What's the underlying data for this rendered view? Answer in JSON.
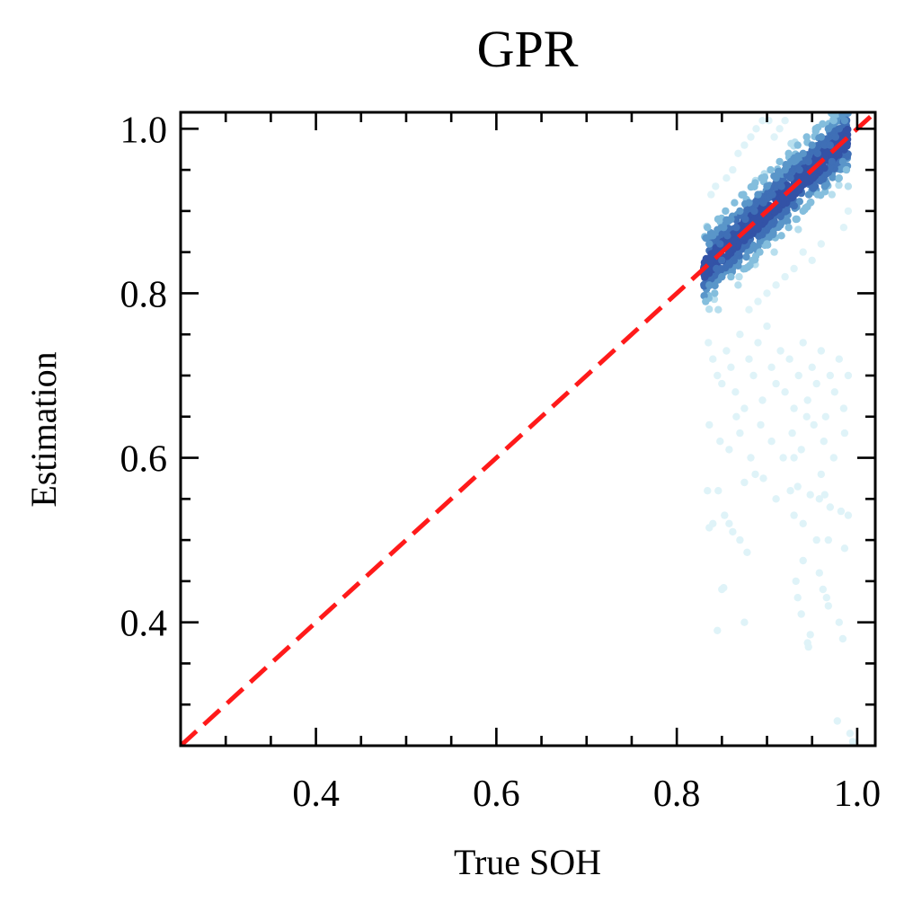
{
  "chart_data": {
    "type": "scatter",
    "title": "GPR",
    "xlabel": "True SOH",
    "ylabel": "Estimation",
    "xlim": [
      0.25,
      1.02
    ],
    "ylim": [
      0.25,
      1.02
    ],
    "xticks": [
      0.4,
      0.6,
      0.8,
      1.0
    ],
    "yticks": [
      0.4,
      0.6,
      0.8,
      1.0
    ],
    "xtick_labels": [
      "0.4",
      "0.6",
      "0.8",
      "1.0"
    ],
    "ytick_labels": [
      "0.4",
      "0.6",
      "0.8",
      "1.0"
    ],
    "grid": false,
    "reference_line": {
      "x": [
        0.25,
        1.02
      ],
      "y": [
        0.25,
        1.02
      ],
      "color": "#ff1a1a",
      "style": "dashed"
    },
    "color_scale": [
      "#dff3f8",
      "#b8dfee",
      "#84bedd",
      "#5a96c9",
      "#3f6fb6",
      "#3352a6"
    ],
    "density_cluster": {
      "x_range": [
        0.83,
        0.99
      ],
      "slope": 1.0,
      "offset": 0.0
    },
    "points": [
      [
        0.834,
        0.88
      ],
      [
        0.836,
        0.86
      ],
      [
        0.838,
        0.84
      ],
      [
        0.84,
        0.87
      ],
      [
        0.842,
        0.85
      ],
      [
        0.844,
        0.83
      ],
      [
        0.846,
        0.89
      ],
      [
        0.848,
        0.86
      ],
      [
        0.85,
        0.84
      ],
      [
        0.852,
        0.88
      ],
      [
        0.854,
        0.9
      ],
      [
        0.856,
        0.87
      ],
      [
        0.858,
        0.85
      ],
      [
        0.86,
        0.89
      ],
      [
        0.862,
        0.86
      ],
      [
        0.864,
        0.91
      ],
      [
        0.866,
        0.88
      ],
      [
        0.868,
        0.86
      ],
      [
        0.87,
        0.9
      ],
      [
        0.872,
        0.87
      ],
      [
        0.874,
        0.92
      ],
      [
        0.876,
        0.89
      ],
      [
        0.878,
        0.87
      ],
      [
        0.88,
        0.91
      ],
      [
        0.882,
        0.88
      ],
      [
        0.884,
        0.93
      ],
      [
        0.886,
        0.9
      ],
      [
        0.888,
        0.88
      ],
      [
        0.89,
        0.92
      ],
      [
        0.892,
        0.89
      ],
      [
        0.894,
        0.94
      ],
      [
        0.896,
        0.91
      ],
      [
        0.898,
        0.89
      ],
      [
        0.9,
        0.93
      ],
      [
        0.902,
        0.9
      ],
      [
        0.904,
        0.95
      ],
      [
        0.906,
        0.92
      ],
      [
        0.908,
        0.9
      ],
      [
        0.91,
        0.94
      ],
      [
        0.912,
        0.91
      ],
      [
        0.914,
        0.96
      ],
      [
        0.916,
        0.93
      ],
      [
        0.918,
        0.91
      ],
      [
        0.92,
        0.95
      ],
      [
        0.922,
        0.92
      ],
      [
        0.924,
        0.97
      ],
      [
        0.926,
        0.94
      ],
      [
        0.928,
        0.92
      ],
      [
        0.93,
        0.96
      ],
      [
        0.932,
        0.93
      ],
      [
        0.934,
        0.98
      ],
      [
        0.936,
        0.95
      ],
      [
        0.938,
        0.93
      ],
      [
        0.94,
        0.97
      ],
      [
        0.942,
        0.94
      ],
      [
        0.944,
        0.99
      ],
      [
        0.946,
        0.96
      ],
      [
        0.948,
        0.94
      ],
      [
        0.95,
        0.98
      ],
      [
        0.952,
        0.95
      ],
      [
        0.954,
        1.0
      ],
      [
        0.956,
        0.97
      ],
      [
        0.958,
        0.95
      ],
      [
        0.96,
        0.99
      ],
      [
        0.962,
        0.96
      ],
      [
        0.964,
        0.98
      ],
      [
        0.966,
        0.97
      ],
      [
        0.968,
        1.0
      ],
      [
        0.97,
        0.98
      ],
      [
        0.972,
        0.96
      ],
      [
        0.974,
        1.01
      ],
      [
        0.976,
        0.99
      ],
      [
        0.978,
        0.97
      ],
      [
        0.98,
        1.0
      ],
      [
        0.982,
        0.98
      ],
      [
        0.984,
        0.96
      ],
      [
        0.986,
        1.01
      ],
      [
        0.988,
        0.99
      ],
      [
        0.83,
        0.83
      ],
      [
        0.832,
        0.79
      ],
      [
        0.836,
        0.81
      ],
      [
        0.842,
        0.8
      ],
      [
        0.85,
        0.82
      ],
      [
        0.846,
        0.78
      ],
      [
        0.838,
        0.92
      ],
      [
        0.843,
        0.93
      ],
      [
        0.855,
        0.94
      ],
      [
        0.862,
        0.95
      ],
      [
        0.868,
        0.97
      ],
      [
        0.875,
        0.98
      ],
      [
        0.882,
        0.99
      ],
      [
        0.888,
        1.0
      ],
      [
        0.895,
        1.01
      ],
      [
        0.902,
        1.01
      ],
      [
        0.908,
        0.99
      ],
      [
        0.914,
        1.0
      ],
      [
        0.92,
        1.01
      ],
      [
        0.86,
        0.82
      ],
      [
        0.868,
        0.81
      ],
      [
        0.876,
        0.83
      ],
      [
        0.884,
        0.84
      ],
      [
        0.892,
        0.85
      ],
      [
        0.9,
        0.86
      ],
      [
        0.908,
        0.85
      ],
      [
        0.916,
        0.87
      ],
      [
        0.924,
        0.88
      ],
      [
        0.932,
        0.89
      ],
      [
        0.94,
        0.9
      ],
      [
        0.948,
        0.91
      ],
      [
        0.956,
        0.92
      ],
      [
        0.964,
        0.93
      ],
      [
        0.972,
        0.92
      ],
      [
        0.98,
        0.94
      ],
      [
        0.988,
        0.95
      ],
      [
        0.99,
        0.93
      ],
      [
        0.99,
        0.9
      ],
      [
        0.985,
        0.88
      ],
      [
        0.96,
        0.86
      ],
      [
        0.95,
        0.84
      ],
      [
        0.94,
        0.85
      ],
      [
        0.93,
        0.83
      ],
      [
        0.92,
        0.82
      ],
      [
        0.91,
        0.81
      ],
      [
        0.9,
        0.8
      ],
      [
        0.89,
        0.79
      ],
      [
        0.88,
        0.78
      ],
      [
        0.835,
        0.74
      ],
      [
        0.84,
        0.72
      ],
      [
        0.845,
        0.7
      ],
      [
        0.85,
        0.69
      ],
      [
        0.855,
        0.73
      ],
      [
        0.86,
        0.71
      ],
      [
        0.865,
        0.68
      ],
      [
        0.87,
        0.75
      ],
      [
        0.875,
        0.66
      ],
      [
        0.88,
        0.72
      ],
      [
        0.885,
        0.7
      ],
      [
        0.89,
        0.74
      ],
      [
        0.895,
        0.67
      ],
      [
        0.9,
        0.76
      ],
      [
        0.905,
        0.71
      ],
      [
        0.91,
        0.69
      ],
      [
        0.915,
        0.73
      ],
      [
        0.92,
        0.68
      ],
      [
        0.925,
        0.72
      ],
      [
        0.93,
        0.66
      ],
      [
        0.935,
        0.7
      ],
      [
        0.94,
        0.74
      ],
      [
        0.945,
        0.67
      ],
      [
        0.95,
        0.71
      ],
      [
        0.955,
        0.69
      ],
      [
        0.96,
        0.73
      ],
      [
        0.965,
        0.65
      ],
      [
        0.97,
        0.7
      ],
      [
        0.975,
        0.68
      ],
      [
        0.98,
        0.72
      ],
      [
        0.985,
        0.66
      ],
      [
        0.99,
        0.7
      ],
      [
        0.836,
        0.64
      ],
      [
        0.848,
        0.62
      ],
      [
        0.858,
        0.61
      ],
      [
        0.87,
        0.63
      ],
      [
        0.882,
        0.6
      ],
      [
        0.893,
        0.64
      ],
      [
        0.905,
        0.62
      ],
      [
        0.918,
        0.6
      ],
      [
        0.928,
        0.63
      ],
      [
        0.938,
        0.61
      ],
      [
        0.952,
        0.64
      ],
      [
        0.963,
        0.62
      ],
      [
        0.974,
        0.6
      ],
      [
        0.986,
        0.63
      ],
      [
        0.866,
        0.65
      ],
      [
        0.944,
        0.65
      ],
      [
        0.834,
        0.56
      ],
      [
        0.846,
        0.56
      ],
      [
        0.853,
        0.53
      ],
      [
        0.875,
        0.57
      ],
      [
        0.887,
        0.58
      ],
      [
        0.896,
        0.575
      ],
      [
        0.91,
        0.55
      ],
      [
        0.926,
        0.56
      ],
      [
        0.934,
        0.565
      ],
      [
        0.948,
        0.555
      ],
      [
        0.958,
        0.55
      ],
      [
        0.97,
        0.54
      ],
      [
        0.982,
        0.535
      ],
      [
        0.99,
        0.53
      ],
      [
        0.84,
        0.52
      ],
      [
        0.862,
        0.51
      ],
      [
        0.87,
        0.5
      ],
      [
        0.878,
        0.485
      ],
      [
        0.93,
        0.53
      ],
      [
        0.94,
        0.52
      ],
      [
        0.955,
        0.5
      ],
      [
        0.968,
        0.5
      ],
      [
        0.836,
        0.515
      ],
      [
        0.858,
        0.52
      ],
      [
        0.85,
        0.44
      ],
      [
        0.852,
        0.442
      ],
      [
        0.875,
        0.4
      ],
      [
        0.932,
        0.45
      ],
      [
        0.934,
        0.43
      ],
      [
        0.938,
        0.41
      ],
      [
        0.94,
        0.475
      ],
      [
        0.958,
        0.46
      ],
      [
        0.962,
        0.44
      ],
      [
        0.966,
        0.43
      ],
      [
        0.968,
        0.42
      ],
      [
        0.98,
        0.4
      ],
      [
        0.984,
        0.38
      ],
      [
        0.986,
        0.49
      ],
      [
        0.945,
        0.375
      ],
      [
        0.948,
        0.385
      ],
      [
        0.946,
        0.37
      ],
      [
        0.845,
        0.39
      ],
      [
        0.978,
        0.28
      ],
      [
        0.992,
        0.265
      ],
      [
        0.995,
        0.255
      ],
      [
        0.964,
        0.555
      ],
      [
        0.93,
        0.6
      ],
      [
        0.96,
        0.58
      ]
    ]
  }
}
